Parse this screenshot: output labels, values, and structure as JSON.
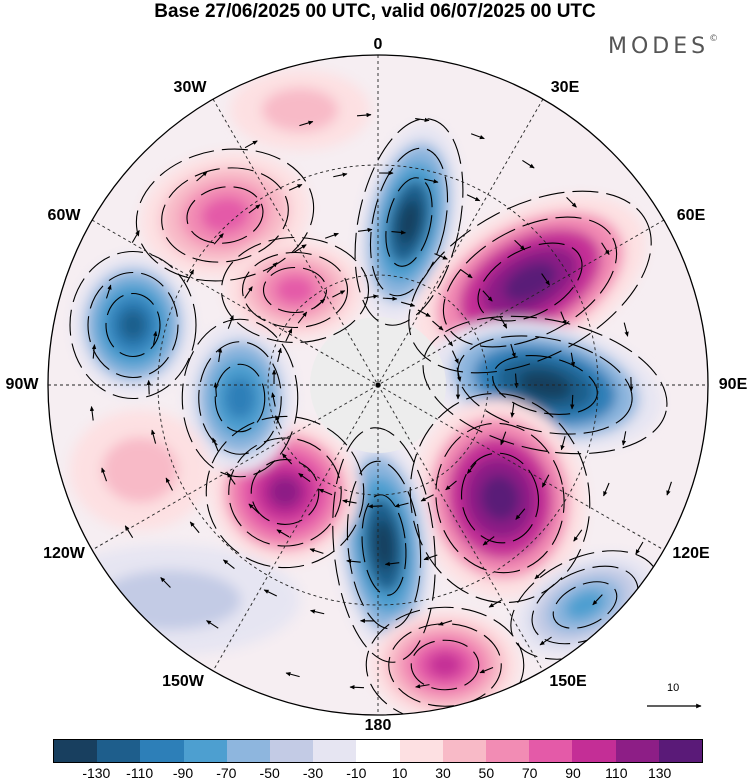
{
  "title": "Base 27/06/2025 00 UTC, valid 06/07/2025 00 UTC",
  "brand": "MODES",
  "brand_mark": "©",
  "labels": {
    "top": "0",
    "top_left": "30W",
    "top_right": "30E",
    "upper_left": "60W",
    "upper_right": "60E",
    "left": "90W",
    "right": "90E",
    "lower_left": "120W",
    "lower_right": "120E",
    "bottom_left": "150W",
    "bottom_right": "150E",
    "bottom": "180"
  },
  "reference_vector": "10",
  "colorbar": {
    "colors": [
      "#183f5f",
      "#1e5e8c",
      "#2d7fb8",
      "#4d9fd0",
      "#8eb6de",
      "#c3cbe5",
      "#e6e5f2",
      "#ffffff",
      "#fde0e2",
      "#f8bac7",
      "#f28cb4",
      "#e45aa8",
      "#c42e96",
      "#8d1e86",
      "#5a1a78"
    ],
    "ticks": [
      "-130",
      "-110",
      "-90",
      "-70",
      "-50",
      "-30",
      "-10",
      "10",
      "30",
      "50",
      "70",
      "90",
      "110",
      "130"
    ]
  },
  "colors": {
    "land": "#ececec",
    "ocean": "#ffffff"
  }
}
